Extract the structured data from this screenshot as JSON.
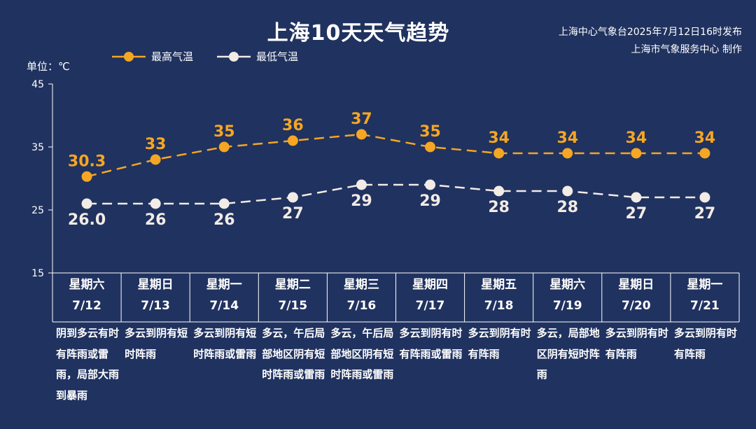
{
  "header": {
    "title": "上海10天天气趋势",
    "publisher_line1": "上海中心气象台2025年7月12日16时发布",
    "publisher_line2": "上海市气象服务中心 制作"
  },
  "unit_label": "单位：℃",
  "colors": {
    "background": "#20325f",
    "high": "#f5a623",
    "low": "#f2ebe6",
    "axis": "#ffffff"
  },
  "chart_data": {
    "type": "line",
    "categories": [
      "7/12",
      "7/13",
      "7/14",
      "7/15",
      "7/16",
      "7/17",
      "7/18",
      "7/19",
      "7/20",
      "7/21"
    ],
    "weekdays": [
      "星期六",
      "星期日",
      "星期一",
      "星期二",
      "星期三",
      "星期四",
      "星期五",
      "星期六",
      "星期日",
      "星期一"
    ],
    "series": [
      {
        "name": "最高气温",
        "values": [
          30.3,
          33,
          35,
          36,
          37,
          35,
          34,
          34,
          34,
          34
        ],
        "labels": [
          "30.3",
          "33",
          "35",
          "36",
          "37",
          "35",
          "34",
          "34",
          "34",
          "34"
        ],
        "color": "#f5a623",
        "label_position": "above"
      },
      {
        "name": "最低气温",
        "values": [
          26.0,
          26,
          26,
          27,
          29,
          29,
          28,
          28,
          27,
          27
        ],
        "labels": [
          "26.0",
          "26",
          "26",
          "27",
          "29",
          "29",
          "28",
          "28",
          "27",
          "27"
        ],
        "color": "#f2ebe6",
        "label_position": "below"
      }
    ],
    "ylim": [
      15,
      45
    ],
    "yticks": [
      15,
      25,
      35,
      45
    ],
    "ytick_labels": [
      "15",
      "25",
      "35",
      "45"
    ],
    "line_style": "dashed",
    "legend_position": "top-left",
    "grid": false,
    "descriptions": [
      "阴到多云有时有阵雨或雷雨，局部大雨到暴雨",
      "多云到阴有短时阵雨",
      "多云到阴有短时阵雨或雷雨",
      "多云，午后局部地区阴有短时阵雨或雷雨",
      "多云，午后局部地区阴有短时阵雨或雷雨",
      "多云到阴有时有阵雨或雷雨",
      "多云到阴有时有阵雨",
      "多云，局部地区阴有短时阵雨",
      "多云到阴有时有阵雨",
      "多云到阴有时有阵雨"
    ]
  }
}
